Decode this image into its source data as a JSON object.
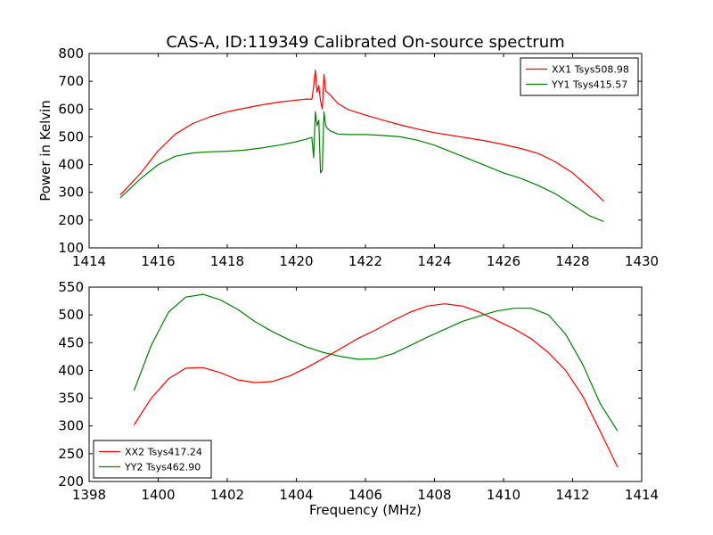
{
  "title": "CAS-A, ID:119349 Calibrated On-source spectrum",
  "chart_data": [
    {
      "type": "line",
      "title": "CAS-A, ID:119349 Calibrated On-source spectrum",
      "xlabel": "",
      "ylabel": "Power in Kelvin",
      "xlim": [
        1414,
        1430
      ],
      "ylim": [
        100,
        800
      ],
      "xticks": [
        1414,
        1416,
        1418,
        1420,
        1422,
        1424,
        1426,
        1428,
        1430
      ],
      "yticks": [
        100,
        200,
        300,
        400,
        500,
        600,
        700,
        800
      ],
      "grid": false,
      "legend": "top-right",
      "series": [
        {
          "name": "XX1 Tsys508.98",
          "color": "#ff0000",
          "x": [
            1414.9,
            1415.5,
            1416.0,
            1416.5,
            1417.0,
            1417.5,
            1418.0,
            1418.5,
            1419.0,
            1419.5,
            1420.0,
            1420.3,
            1420.45,
            1420.5,
            1420.55,
            1420.6,
            1420.65,
            1420.7,
            1420.75,
            1420.8,
            1420.85,
            1420.9,
            1421.0,
            1421.2,
            1421.5,
            1422.0,
            1422.5,
            1423.0,
            1423.5,
            1424.0,
            1424.5,
            1425.0,
            1425.5,
            1426.0,
            1426.5,
            1427.0,
            1427.5,
            1428.0,
            1428.5,
            1428.9
          ],
          "values": [
            290,
            370,
            450,
            510,
            548,
            572,
            590,
            603,
            615,
            625,
            632,
            636,
            635,
            680,
            740,
            660,
            685,
            630,
            600,
            725,
            665,
            660,
            648,
            620,
            598,
            578,
            560,
            543,
            528,
            515,
            505,
            495,
            485,
            472,
            458,
            440,
            410,
            370,
            315,
            268
          ]
        },
        {
          "name": "YY1 Tsys415.57",
          "color": "#008000",
          "x": [
            1414.9,
            1415.5,
            1416.0,
            1416.5,
            1417.0,
            1417.5,
            1418.0,
            1418.5,
            1419.0,
            1419.5,
            1420.0,
            1420.3,
            1420.45,
            1420.5,
            1420.55,
            1420.6,
            1420.65,
            1420.7,
            1420.75,
            1420.8,
            1420.85,
            1420.9,
            1421.0,
            1421.2,
            1421.5,
            1422.0,
            1422.5,
            1423.0,
            1423.5,
            1424.0,
            1424.5,
            1425.0,
            1425.5,
            1426.0,
            1426.5,
            1427.0,
            1427.5,
            1428.0,
            1428.5,
            1428.9
          ],
          "values": [
            280,
            350,
            400,
            430,
            442,
            446,
            448,
            452,
            460,
            470,
            482,
            492,
            498,
            425,
            590,
            540,
            560,
            370,
            380,
            590,
            540,
            530,
            520,
            510,
            508,
            508,
            505,
            500,
            488,
            470,
            445,
            420,
            395,
            370,
            350,
            325,
            295,
            255,
            215,
            195
          ]
        }
      ]
    },
    {
      "type": "line",
      "title": "",
      "xlabel": "Frequency (MHz)",
      "ylabel": "",
      "xlim": [
        1398,
        1414
      ],
      "ylim": [
        200,
        550
      ],
      "xticks": [
        1398,
        1400,
        1402,
        1404,
        1406,
        1408,
        1410,
        1412,
        1414
      ],
      "yticks": [
        200,
        250,
        300,
        350,
        400,
        450,
        500,
        550
      ],
      "grid": false,
      "legend": "bottom-left",
      "series": [
        {
          "name": "XX2 Tsys417.24",
          "color": "#ff0000",
          "x": [
            1399.3,
            1399.8,
            1400.3,
            1400.8,
            1401.3,
            1401.8,
            1402.3,
            1402.8,
            1403.3,
            1403.8,
            1404.3,
            1404.8,
            1405.3,
            1405.8,
            1406.3,
            1406.8,
            1407.3,
            1407.8,
            1408.3,
            1408.8,
            1409.3,
            1409.8,
            1410.3,
            1410.8,
            1411.3,
            1411.8,
            1412.3,
            1412.8,
            1413.3
          ],
          "values": [
            302,
            350,
            385,
            404,
            405,
            396,
            383,
            378,
            380,
            390,
            405,
            422,
            440,
            458,
            473,
            490,
            505,
            516,
            520,
            516,
            505,
            490,
            475,
            457,
            432,
            400,
            353,
            290,
            226
          ]
        },
        {
          "name": "YY2 Tsys462.90",
          "color": "#008000",
          "x": [
            1399.3,
            1399.8,
            1400.3,
            1400.8,
            1401.3,
            1401.8,
            1402.3,
            1402.8,
            1403.3,
            1403.8,
            1404.3,
            1404.8,
            1405.3,
            1405.8,
            1406.3,
            1406.8,
            1407.3,
            1407.8,
            1408.3,
            1408.8,
            1409.3,
            1409.8,
            1410.3,
            1410.8,
            1411.3,
            1411.8,
            1412.3,
            1412.8,
            1413.3
          ],
          "values": [
            364,
            445,
            505,
            532,
            537,
            527,
            510,
            488,
            470,
            455,
            442,
            432,
            425,
            420,
            421,
            430,
            445,
            460,
            474,
            488,
            498,
            507,
            512,
            512,
            500,
            465,
            410,
            340,
            291
          ]
        }
      ]
    }
  ]
}
